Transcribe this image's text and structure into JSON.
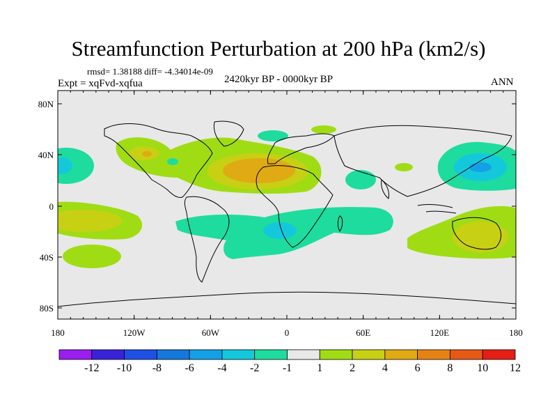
{
  "title": "Streamfunction Perturbation at 200 hPa (km2/s)",
  "stats": "rmsd= 1.38188 diff= -4.34014e-09",
  "experiment": "Expt = xqFvd-xqfua",
  "period": "2420kyr BP - 0000kyr BP",
  "season": "ANN",
  "map": {
    "y_ticks": [
      "80N",
      "40N",
      "0",
      "40S",
      "80S"
    ],
    "x_ticks": [
      "180",
      "120W",
      "60W",
      "0",
      "60E",
      "120E",
      "180"
    ],
    "background_color": "#e8e8e8"
  },
  "colorbar": {
    "labels": [
      "-12",
      "-10",
      "-8",
      "-6",
      "-4",
      "-2",
      "-1",
      "1",
      "2",
      "4",
      "6",
      "8",
      "10",
      "12"
    ],
    "colors": [
      "#9a1ef0",
      "#3a22d8",
      "#1e50e6",
      "#1478dc",
      "#14a0e6",
      "#14c8dc",
      "#1edc9e",
      "#e8e8e8",
      "#a0dc14",
      "#c8d014",
      "#e0aa14",
      "#e68214",
      "#e65a14",
      "#e61e14"
    ]
  }
}
